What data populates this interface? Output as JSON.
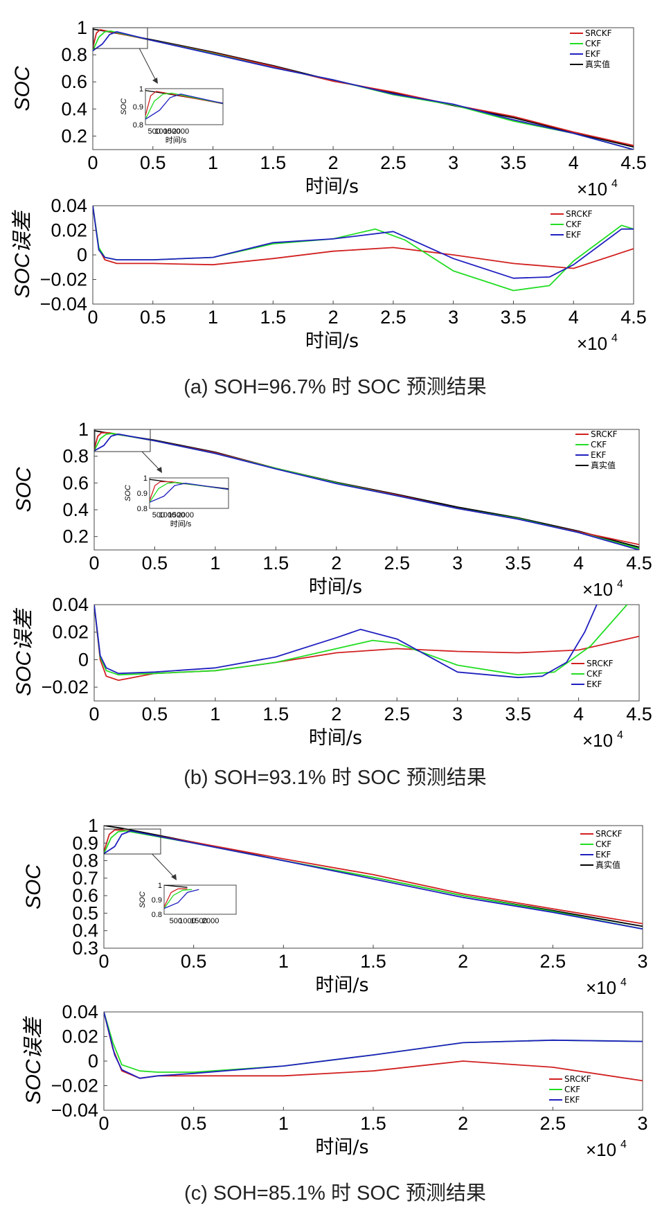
{
  "colors": {
    "SRCKF": "#d11f1f",
    "CKF": "#22dd22",
    "EKF": "#1f1fbf",
    "truth": "#000000"
  },
  "sections": [
    {
      "caption": "(a) SOH=96.7% 时 SOC 预测结果",
      "soc_chart": {
        "type": "line",
        "ylabel": "SOC",
        "xlabel": "时间/s",
        "x_multiplier": "×10",
        "x_multiplier_exp": "4",
        "xlim": [
          0,
          4.5
        ],
        "ylim": [
          0.1,
          1.0
        ],
        "xticks": [
          "0",
          "0.5",
          "1",
          "1.5",
          "2",
          "2.5",
          "3",
          "3.5",
          "4",
          "4.5"
        ],
        "xtick_values": [
          0,
          0.5,
          1,
          1.5,
          2,
          2.5,
          3,
          3.5,
          4,
          4.5
        ],
        "yticks": [
          "0.2",
          "0.4",
          "0.6",
          "0.8",
          "1"
        ],
        "ytick_values": [
          0.2,
          0.4,
          0.6,
          0.8,
          1.0
        ],
        "legend": [
          "SRCKF",
          "CKF",
          "EKF",
          "真实值"
        ],
        "inset": {
          "xlabel": "时间/s",
          "xticks": [
            "500",
            "1000",
            "1500",
            "2000"
          ],
          "yticks": [
            "0.8",
            "0.9",
            "1"
          ]
        },
        "series": [
          {
            "name": "真实值",
            "x": [
              0,
              0.1,
              0.5,
              1,
              1.5,
              2,
              2.5,
              3,
              3.5,
              4,
              4.5
            ],
            "y": [
              0.99,
              0.975,
              0.91,
              0.82,
              0.72,
              0.61,
              0.52,
              0.425,
              0.335,
              0.225,
              0.12
            ]
          },
          {
            "name": "SRCKF",
            "x": [
              0,
              0.03,
              0.06,
              0.12,
              0.5,
              1,
              1.5,
              2,
              2.5,
              3,
              3.5,
              4,
              4.5
            ],
            "y": [
              0.85,
              0.96,
              0.985,
              0.975,
              0.905,
              0.815,
              0.715,
              0.605,
              0.525,
              0.43,
              0.345,
              0.23,
              0.13
            ]
          },
          {
            "name": "CKF",
            "x": [
              0,
              0.05,
              0.1,
              0.15,
              0.5,
              1,
              1.5,
              2,
              2.5,
              3,
              3.5,
              4,
              4.5
            ],
            "y": [
              0.83,
              0.93,
              0.97,
              0.975,
              0.905,
              0.81,
              0.705,
              0.615,
              0.505,
              0.43,
              0.31,
              0.22,
              0.1
            ]
          },
          {
            "name": "EKF",
            "x": [
              0,
              0.08,
              0.14,
              0.2,
              0.5,
              1,
              1.5,
              2,
              2.5,
              3,
              3.5,
              4,
              4.5
            ],
            "y": [
              0.83,
              0.88,
              0.95,
              0.97,
              0.905,
              0.805,
              0.705,
              0.615,
              0.51,
              0.435,
              0.32,
              0.22,
              0.1
            ]
          }
        ]
      },
      "error_chart": {
        "type": "line",
        "ylabel": "SOC误差",
        "xlabel": "时间/s",
        "x_multiplier": "×10",
        "x_multiplier_exp": "4",
        "xlim": [
          0,
          4.5
        ],
        "ylim": [
          -0.04,
          0.04
        ],
        "xticks": [
          "0",
          "0.5",
          "1",
          "1.5",
          "2",
          "2.5",
          "3",
          "3.5",
          "4",
          "4.5"
        ],
        "xtick_values": [
          0,
          0.5,
          1,
          1.5,
          2,
          2.5,
          3,
          3.5,
          4,
          4.5
        ],
        "yticks": [
          "−0.04",
          "−0.02",
          "0",
          "0.02",
          "0.04"
        ],
        "ytick_values": [
          -0.04,
          -0.02,
          0,
          0.02,
          0.04
        ],
        "legend": [
          "SRCKF",
          "CKF",
          "EKF"
        ],
        "series": [
          {
            "name": "SRCKF",
            "x": [
              0,
              0.05,
              0.1,
              0.2,
              0.5,
              1,
              1.5,
              2,
              2.5,
              3,
              3.5,
              4,
              4.5
            ],
            "y": [
              0.04,
              0.005,
              -0.004,
              -0.007,
              -0.007,
              -0.008,
              -0.003,
              0.003,
              0.006,
              0.0,
              -0.007,
              -0.011,
              0.005
            ]
          },
          {
            "name": "CKF",
            "x": [
              0,
              0.05,
              0.1,
              0.2,
              0.5,
              1,
              1.5,
              2,
              2.35,
              2.6,
              3,
              3.5,
              3.8,
              4,
              4.4,
              4.5
            ],
            "y": [
              0.04,
              0.006,
              -0.002,
              -0.004,
              -0.004,
              -0.002,
              0.009,
              0.013,
              0.021,
              0.012,
              -0.013,
              -0.029,
              -0.025,
              -0.005,
              0.024,
              0.021
            ]
          },
          {
            "name": "EKF",
            "x": [
              0,
              0.05,
              0.1,
              0.2,
              0.5,
              1,
              1.5,
              2,
              2.5,
              3,
              3.5,
              3.8,
              4,
              4.4,
              4.5
            ],
            "y": [
              0.04,
              0.004,
              -0.002,
              -0.004,
              -0.004,
              -0.002,
              0.01,
              0.013,
              0.019,
              -0.003,
              -0.019,
              -0.018,
              -0.008,
              0.021,
              0.021
            ]
          }
        ]
      }
    },
    {
      "caption": "(b) SOH=93.1% 时 SOC 预测结果",
      "soc_chart": {
        "type": "line",
        "ylabel": "SOC",
        "xlabel": "时间/s",
        "x_multiplier": "×10",
        "x_multiplier_exp": "4",
        "xlim": [
          0,
          4.5
        ],
        "ylim": [
          0.1,
          1.0
        ],
        "xticks": [
          "0",
          "0.5",
          "1",
          "1.5",
          "2",
          "2.5",
          "3",
          "3.5",
          "4",
          "4.5"
        ],
        "xtick_values": [
          0,
          0.5,
          1,
          1.5,
          2,
          2.5,
          3,
          3.5,
          4,
          4.5
        ],
        "yticks": [
          "0.2",
          "0.4",
          "0.6",
          "0.8",
          "1"
        ],
        "ytick_values": [
          0.2,
          0.4,
          0.6,
          0.8,
          1.0
        ],
        "legend": [
          "SRCKF",
          "CKF",
          "EKF",
          "真实值"
        ],
        "inset": {
          "xlabel": "时间/s",
          "xticks": [
            "500",
            "1000",
            "1500",
            "2000"
          ],
          "yticks": [
            "0.8",
            "0.9",
            "1"
          ]
        },
        "series": [
          {
            "name": "真实值",
            "x": [
              0,
              0.1,
              0.5,
              1,
              1.5,
              2,
              2.5,
              3,
              3.5,
              4,
              4.5
            ],
            "y": [
              0.99,
              0.975,
              0.92,
              0.83,
              0.71,
              0.605,
              0.515,
              0.42,
              0.34,
              0.24,
              0.12
            ]
          },
          {
            "name": "SRCKF",
            "x": [
              0,
              0.03,
              0.06,
              0.12,
              0.5,
              1,
              1.5,
              2,
              2.5,
              3,
              3.5,
              4,
              4.5
            ],
            "y": [
              0.85,
              0.95,
              0.975,
              0.975,
              0.915,
              0.825,
              0.71,
              0.6,
              0.51,
              0.41,
              0.33,
              0.235,
              0.14
            ]
          },
          {
            "name": "CKF",
            "x": [
              0,
              0.05,
              0.1,
              0.15,
              0.5,
              1,
              1.5,
              2,
              2.5,
              3,
              3.5,
              4,
              4.5
            ],
            "y": [
              0.84,
              0.93,
              0.965,
              0.97,
              0.915,
              0.82,
              0.71,
              0.6,
              0.505,
              0.41,
              0.335,
              0.23,
              0.11
            ]
          },
          {
            "name": "EKF",
            "x": [
              0,
              0.08,
              0.14,
              0.2,
              0.5,
              1,
              1.5,
              2,
              2.5,
              3,
              3.5,
              4,
              4.5
            ],
            "y": [
              0.84,
              0.88,
              0.95,
              0.965,
              0.915,
              0.82,
              0.705,
              0.595,
              0.505,
              0.41,
              0.33,
              0.23,
              0.1
            ]
          }
        ]
      },
      "error_chart": {
        "type": "line",
        "ylabel": "SOC误差",
        "xlabel": "时间/s",
        "x_multiplier": "×10",
        "x_multiplier_exp": "4",
        "xlim": [
          0,
          4.5
        ],
        "ylim": [
          -0.03,
          0.04
        ],
        "xticks": [
          "0",
          "0.5",
          "1",
          "1.5",
          "2",
          "2.5",
          "3",
          "3.5",
          "4",
          "4.5"
        ],
        "xtick_values": [
          0,
          0.5,
          1,
          1.5,
          2,
          2.5,
          3,
          3.5,
          4,
          4.5
        ],
        "yticks": [
          "−0.02",
          "0",
          "0.02",
          "0.04"
        ],
        "ytick_values": [
          -0.02,
          0,
          0.02,
          0.04
        ],
        "legend": [
          "SRCKF",
          "CKF",
          "EKF"
        ],
        "series": [
          {
            "name": "SRCKF",
            "x": [
              0,
              0.05,
              0.1,
              0.2,
              0.5,
              1,
              1.5,
              2,
              2.5,
              3,
              3.5,
              4,
              4.5
            ],
            "y": [
              0.04,
              0.0,
              -0.012,
              -0.015,
              -0.01,
              -0.008,
              -0.002,
              0.005,
              0.008,
              0.006,
              0.005,
              0.007,
              0.017
            ]
          },
          {
            "name": "CKF",
            "x": [
              0,
              0.05,
              0.1,
              0.2,
              0.5,
              1,
              1.5,
              2,
              2.3,
              2.5,
              3,
              3.5,
              3.8,
              4.1,
              4.3,
              4.4
            ],
            "y": [
              0.04,
              0.002,
              -0.008,
              -0.011,
              -0.01,
              -0.008,
              -0.002,
              0.008,
              0.014,
              0.012,
              -0.004,
              -0.011,
              -0.009,
              0.01,
              0.03,
              0.04
            ]
          },
          {
            "name": "EKF",
            "x": [
              0,
              0.05,
              0.1,
              0.2,
              0.5,
              1,
              1.5,
              2,
              2.2,
              2.5,
              3,
              3.5,
              3.7,
              3.9,
              4.05,
              4.15
            ],
            "y": [
              0.04,
              0.003,
              -0.006,
              -0.01,
              -0.009,
              -0.006,
              0.002,
              0.016,
              0.022,
              0.015,
              -0.009,
              -0.013,
              -0.012,
              -0.002,
              0.02,
              0.04
            ]
          }
        ]
      }
    },
    {
      "caption": "(c) SOH=85.1% 时 SOC 预测结果",
      "soc_chart": {
        "type": "line",
        "ylabel": "SOC",
        "xlabel": "时间/s",
        "x_multiplier": "×10",
        "x_multiplier_exp": "4",
        "xlim": [
          0,
          3
        ],
        "ylim": [
          0.3,
          1.0
        ],
        "xticks": [
          "0",
          "0.5",
          "1",
          "1.5",
          "2",
          "2.5",
          "3"
        ],
        "xtick_values": [
          0,
          0.5,
          1,
          1.5,
          2,
          2.5,
          3
        ],
        "yticks": [
          "0.3",
          "0.4",
          "0.5",
          "0.6",
          "0.7",
          "0.8",
          "0.9",
          "1"
        ],
        "ytick_values": [
          0.3,
          0.4,
          0.5,
          0.6,
          0.7,
          0.8,
          0.9,
          1.0
        ],
        "legend": [
          "SRCKF",
          "CKF",
          "EKF",
          "真实值"
        ],
        "inset": {
          "xlabel": "",
          "xticks": [
            "500",
            "1000",
            "1500",
            "2000"
          ],
          "yticks": [
            "0.8",
            "0.9",
            "1"
          ]
        },
        "series": [
          {
            "name": "真实值",
            "x": [
              0,
              0.1,
              0.5,
              1,
              1.5,
              2,
              2.5,
              3
            ],
            "y": [
              1.0,
              0.985,
              0.905,
              0.8,
              0.705,
              0.6,
              0.515,
              0.425
            ]
          },
          {
            "name": "SRCKF",
            "x": [
              0,
              0.03,
              0.06,
              0.1,
              0.5,
              1,
              1.5,
              2,
              2.5,
              3
            ],
            "y": [
              0.85,
              0.95,
              0.975,
              0.975,
              0.905,
              0.81,
              0.72,
              0.61,
              0.525,
              0.44
            ]
          },
          {
            "name": "CKF",
            "x": [
              0,
              0.04,
              0.08,
              0.12,
              0.5,
              1,
              1.5,
              2,
              2.5,
              3
            ],
            "y": [
              0.84,
              0.93,
              0.965,
              0.97,
              0.9,
              0.8,
              0.705,
              0.6,
              0.51,
              0.41
            ]
          },
          {
            "name": "EKF",
            "x": [
              0,
              0.06,
              0.1,
              0.15,
              0.5,
              1,
              1.5,
              2,
              2.5,
              3
            ],
            "y": [
              0.84,
              0.88,
              0.95,
              0.97,
              0.9,
              0.8,
              0.695,
              0.59,
              0.505,
              0.41
            ]
          }
        ]
      },
      "error_chart": {
        "type": "line",
        "ylabel": "SOC误差",
        "xlabel": "时间/s",
        "x_multiplier": "×10",
        "x_multiplier_exp": "4",
        "xlim": [
          0,
          3
        ],
        "ylim": [
          -0.04,
          0.04
        ],
        "xticks": [
          "0",
          "0.5",
          "1",
          "1.5",
          "2",
          "2.5",
          "3"
        ],
        "xtick_values": [
          0,
          0.5,
          1,
          1.5,
          2,
          2.5,
          3
        ],
        "yticks": [
          "−0.04",
          "−0.02",
          "0",
          "0.02",
          "0.04"
        ],
        "ytick_values": [
          -0.04,
          -0.02,
          0,
          0.02,
          0.04
        ],
        "legend": [
          "SRCKF",
          "CKF",
          "EKF"
        ],
        "series": [
          {
            "name": "SRCKF",
            "x": [
              0,
              0.05,
              0.1,
              0.2,
              0.3,
              0.5,
              1,
              1.5,
              2,
              2.5,
              3
            ],
            "y": [
              0.04,
              0.01,
              -0.008,
              -0.014,
              -0.012,
              -0.012,
              -0.012,
              -0.008,
              0.0,
              -0.005,
              -0.016
            ]
          },
          {
            "name": "CKF",
            "x": [
              0,
              0.05,
              0.1,
              0.2,
              0.3,
              0.5,
              1,
              1.5,
              2,
              2.5,
              3
            ],
            "y": [
              0.04,
              0.015,
              -0.003,
              -0.008,
              -0.009,
              -0.009,
              -0.004,
              0.005,
              0.015,
              0.017,
              0.016
            ]
          },
          {
            "name": "EKF",
            "x": [
              0,
              0.06,
              0.1,
              0.2,
              0.3,
              0.5,
              1,
              1.5,
              2,
              2.5,
              3
            ],
            "y": [
              0.04,
              0.005,
              -0.007,
              -0.014,
              -0.012,
              -0.01,
              -0.004,
              0.005,
              0.015,
              0.017,
              0.016
            ]
          }
        ]
      }
    }
  ]
}
